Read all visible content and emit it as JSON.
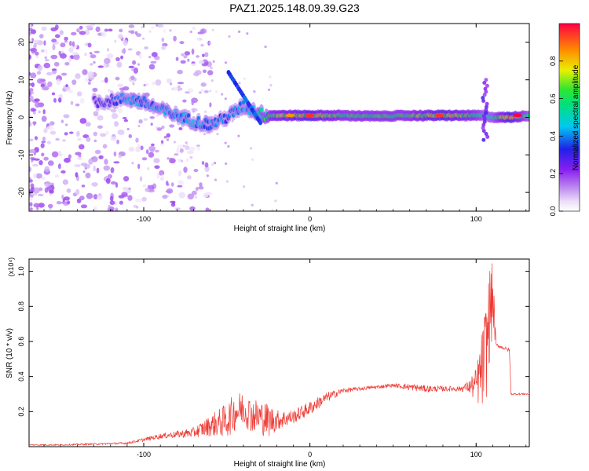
{
  "title": "PAZ1.2025.148.09.39.G23",
  "colors": {
    "series": "#ee3a34",
    "axes": "#000000",
    "colormap": [
      "#ffffff",
      "#c8b4f0",
      "#7d2df0",
      "#1e1ee6",
      "#00c8f0",
      "#00e07a",
      "#28e628",
      "#f0f000",
      "#ff8000",
      "#e60000"
    ]
  },
  "chart_data": [
    {
      "type": "heatmap",
      "xlabel": "Height of straight line (km)",
      "ylabel": "Frequency (Hz)",
      "xlim": [
        -169,
        132
      ],
      "ylim": [
        -25,
        25
      ],
      "xticks": [
        -100,
        0,
        100
      ],
      "yticks": [
        -20,
        -10,
        0,
        10,
        20
      ],
      "colorbar": {
        "label": "Normalized spectral amplitude",
        "range": [
          0.0,
          1.0
        ],
        "ticks": [
          "0.0",
          "0.2",
          "0.4",
          "0.6",
          "0.8"
        ]
      },
      "ridge": {
        "x": [
          -130,
          -120,
          -110,
          -100,
          -90,
          -80,
          -70,
          -60,
          -50,
          -40,
          -30,
          -25,
          -20,
          0,
          20,
          40,
          60,
          80,
          100,
          105,
          110,
          120,
          132
        ],
        "y": [
          4,
          4.5,
          5,
          4,
          2,
          0.5,
          -1,
          -2,
          0,
          3,
          1,
          0.5,
          0.5,
          0.5,
          0.5,
          0.3,
          0.5,
          0.5,
          0.5,
          0.5,
          0,
          0,
          0.5
        ],
        "amplitude": [
          0.3,
          0.3,
          0.4,
          0.4,
          0.4,
          0.4,
          0.4,
          0.4,
          0.35,
          0.4,
          0.5,
          0.6,
          0.65,
          0.75,
          0.6,
          0.6,
          0.6,
          0.75,
          0.6,
          0.5,
          0.5,
          0.8,
          0.5
        ]
      }
    },
    {
      "type": "line",
      "xlabel": "Height of straight line (km)",
      "ylabel": "SNR (10 * v/v)",
      "yunit": "(x10⁴)",
      "xlim": [
        -169,
        132
      ],
      "ylim": [
        0,
        1.07
      ],
      "xticks": [
        -100,
        0,
        100
      ],
      "yticks": [
        0.2,
        0.4,
        0.6,
        0.8,
        1.0
      ],
      "series": [
        {
          "x": [
            -169,
            -150,
            -130,
            -110,
            -100,
            -90,
            -80,
            -70,
            -60,
            -50,
            -45,
            -40,
            -35,
            -30,
            -25,
            -20,
            -10,
            0,
            10,
            20,
            30,
            40,
            50,
            60,
            70,
            80,
            90,
            95,
            100,
            104,
            106,
            108,
            110,
            112,
            120,
            121,
            125,
            132
          ],
          "y": [
            0.01,
            0.01,
            0.015,
            0.02,
            0.04,
            0.06,
            0.07,
            0.08,
            0.12,
            0.15,
            0.2,
            0.22,
            0.18,
            0.17,
            0.15,
            0.15,
            0.17,
            0.22,
            0.28,
            0.32,
            0.33,
            0.34,
            0.35,
            0.34,
            0.33,
            0.33,
            0.33,
            0.34,
            0.35,
            0.45,
            0.55,
            0.75,
            0.85,
            0.58,
            0.55,
            0.3,
            0.3,
            0.3
          ],
          "noise": [
            0.003,
            0.004,
            0.005,
            0.006,
            0.01,
            0.015,
            0.02,
            0.03,
            0.06,
            0.1,
            0.11,
            0.1,
            0.1,
            0.1,
            0.1,
            0.06,
            0.04,
            0.04,
            0.03,
            0.015,
            0.01,
            0.01,
            0.01,
            0.02,
            0.02,
            0.015,
            0.015,
            0.03,
            0.1,
            0.25,
            0.3,
            0.28,
            0.2,
            0.01,
            0.01,
            0.005,
            0.005,
            0.005
          ]
        }
      ]
    }
  ],
  "text": {
    "top_xlabel": "Height of straight line (km)",
    "top_ylabel": "Frequency (Hz)",
    "bottom_xlabel": "Height of straight line (km)",
    "bottom_ylabel": "SNR (10 * v/v)",
    "bottom_yunit": "(x10⁴)",
    "colorbar_label": "Normalized spectral amplitude"
  }
}
